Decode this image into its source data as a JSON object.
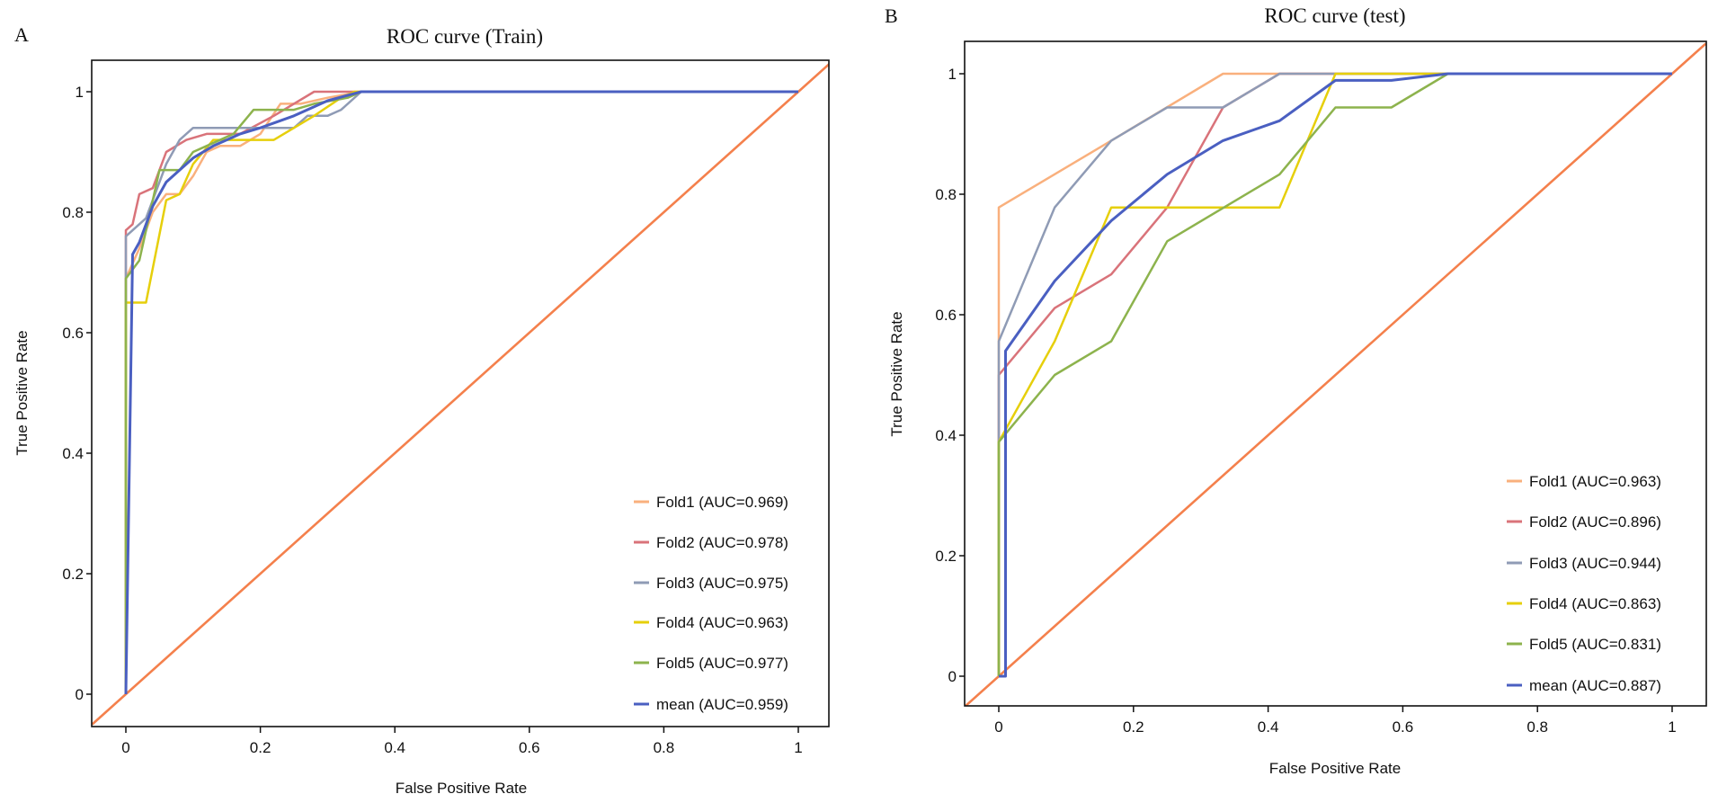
{
  "chart_data": [
    {
      "type": "line",
      "panel_label": "A",
      "title": "ROC curve (Train)",
      "xlabel": "False Positive Rate",
      "ylabel": "True Positive Rate",
      "xlim": [
        -0.05,
        1.05
      ],
      "ylim": [
        -0.05,
        1.05
      ],
      "xticks": [
        "0",
        "0.2",
        "0.4",
        "0.6",
        "0.8",
        "1"
      ],
      "yticks": [
        "0",
        "0.2",
        "0.4",
        "0.6",
        "0.8",
        "1"
      ],
      "grid": false,
      "legend_position": "bottom-right",
      "diagonal": {
        "from": [
          -0.05,
          -0.05
        ],
        "to": [
          1.05,
          1.05
        ],
        "color": "#f4804c"
      },
      "series": [
        {
          "name": "Fold1 (AUC=0.969)",
          "color": "#f9b07d",
          "points": [
            [
              0,
              0
            ],
            [
              0,
              0.69
            ],
            [
              0.02,
              0.74
            ],
            [
              0.04,
              0.8
            ],
            [
              0.06,
              0.83
            ],
            [
              0.08,
              0.83
            ],
            [
              0.1,
              0.86
            ],
            [
              0.12,
              0.9
            ],
            [
              0.14,
              0.91
            ],
            [
              0.17,
              0.91
            ],
            [
              0.2,
              0.93
            ],
            [
              0.23,
              0.98
            ],
            [
              0.26,
              0.98
            ],
            [
              0.3,
              0.99
            ],
            [
              0.35,
              1
            ],
            [
              1,
              1
            ]
          ]
        },
        {
          "name": "Fold2 (AUC=0.978)",
          "color": "#d9737a",
          "points": [
            [
              0,
              0
            ],
            [
              0,
              0.77
            ],
            [
              0.01,
              0.78
            ],
            [
              0.02,
              0.83
            ],
            [
              0.04,
              0.84
            ],
            [
              0.05,
              0.87
            ],
            [
              0.06,
              0.9
            ],
            [
              0.09,
              0.92
            ],
            [
              0.12,
              0.93
            ],
            [
              0.17,
              0.93
            ],
            [
              0.22,
              0.96
            ],
            [
              0.28,
              1.0
            ],
            [
              1,
              1
            ]
          ]
        },
        {
          "name": "Fold3 (AUC=0.975)",
          "color": "#8f9bb5",
          "points": [
            [
              0,
              0
            ],
            [
              0,
              0.76
            ],
            [
              0.03,
              0.79
            ],
            [
              0.06,
              0.88
            ],
            [
              0.08,
              0.92
            ],
            [
              0.1,
              0.94
            ],
            [
              0.25,
              0.94
            ],
            [
              0.27,
              0.96
            ],
            [
              0.3,
              0.96
            ],
            [
              0.32,
              0.97
            ],
            [
              0.35,
              1
            ],
            [
              1,
              1
            ]
          ]
        },
        {
          "name": "Fold4 (AUC=0.963)",
          "color": "#e6cf0b",
          "points": [
            [
              0,
              0
            ],
            [
              0,
              0.65
            ],
            [
              0.03,
              0.65
            ],
            [
              0.06,
              0.82
            ],
            [
              0.08,
              0.83
            ],
            [
              0.1,
              0.88
            ],
            [
              0.13,
              0.92
            ],
            [
              0.22,
              0.92
            ],
            [
              0.28,
              0.96
            ],
            [
              0.32,
              0.99
            ],
            [
              0.34,
              1
            ],
            [
              1,
              1
            ]
          ]
        },
        {
          "name": "Fold5 (AUC=0.977)",
          "color": "#8db34d",
          "points": [
            [
              0,
              0
            ],
            [
              0,
              0.69
            ],
            [
              0.02,
              0.72
            ],
            [
              0.05,
              0.87
            ],
            [
              0.08,
              0.87
            ],
            [
              0.1,
              0.9
            ],
            [
              0.12,
              0.91
            ],
            [
              0.16,
              0.93
            ],
            [
              0.19,
              0.97
            ],
            [
              0.25,
              0.97
            ],
            [
              0.28,
              0.98
            ],
            [
              0.33,
              0.99
            ],
            [
              0.35,
              1
            ],
            [
              1,
              1
            ]
          ]
        },
        {
          "name": "mean (AUC=0.959)",
          "color": "#4a5fc1",
          "points": [
            [
              0,
              0
            ],
            [
              0.01,
              0.73
            ],
            [
              0.02,
              0.75
            ],
            [
              0.04,
              0.81
            ],
            [
              0.06,
              0.85
            ],
            [
              0.08,
              0.87
            ],
            [
              0.1,
              0.89
            ],
            [
              0.13,
              0.91
            ],
            [
              0.17,
              0.93
            ],
            [
              0.2,
              0.94
            ],
            [
              0.25,
              0.96
            ],
            [
              0.3,
              0.985
            ],
            [
              0.35,
              1
            ],
            [
              1,
              1
            ]
          ]
        }
      ]
    },
    {
      "type": "line",
      "panel_label": "B",
      "title": "ROC curve (test)",
      "xlabel": "False Positive Rate",
      "ylabel": "True Positive Rate",
      "xlim": [
        -0.05,
        1.05
      ],
      "ylim": [
        -0.05,
        1.05
      ],
      "xticks": [
        "0",
        "0.2",
        "0.4",
        "0.6",
        "0.8",
        "1"
      ],
      "yticks": [
        "0",
        "0.2",
        "0.4",
        "0.6",
        "0.8",
        "1"
      ],
      "grid": false,
      "legend_position": "bottom-right",
      "diagonal": {
        "from": [
          -0.05,
          -0.05
        ],
        "to": [
          1.05,
          1.05
        ],
        "color": "#f4804c"
      },
      "series": [
        {
          "name": "Fold1 (AUC=0.963)",
          "color": "#f9b07d",
          "points": [
            [
              0,
              0
            ],
            [
              0,
              0.778
            ],
            [
              0.167,
              0.889
            ],
            [
              0.333,
              1
            ],
            [
              1,
              1
            ]
          ]
        },
        {
          "name": "Fold2 (AUC=0.896)",
          "color": "#d9737a",
          "points": [
            [
              0,
              0
            ],
            [
              0,
              0.5
            ],
            [
              0.083,
              0.611
            ],
            [
              0.167,
              0.667
            ],
            [
              0.25,
              0.778
            ],
            [
              0.333,
              0.944
            ],
            [
              0.417,
              1
            ],
            [
              1,
              1
            ]
          ]
        },
        {
          "name": "Fold3 (AUC=0.944)",
          "color": "#8f9bb5",
          "points": [
            [
              0,
              0
            ],
            [
              0,
              0.556
            ],
            [
              0.083,
              0.778
            ],
            [
              0.167,
              0.889
            ],
            [
              0.25,
              0.944
            ],
            [
              0.333,
              0.944
            ],
            [
              0.417,
              1
            ],
            [
              1,
              1
            ]
          ]
        },
        {
          "name": "Fold4 (AUC=0.863)",
          "color": "#e6cf0b",
          "points": [
            [
              0,
              0
            ],
            [
              0,
              0.389
            ],
            [
              0.083,
              0.556
            ],
            [
              0.167,
              0.778
            ],
            [
              0.417,
              0.778
            ],
            [
              0.5,
              1
            ],
            [
              1,
              1
            ]
          ]
        },
        {
          "name": "Fold5 (AUC=0.831)",
          "color": "#8db34d",
          "points": [
            [
              0,
              0
            ],
            [
              0,
              0.389
            ],
            [
              0.083,
              0.5
            ],
            [
              0.167,
              0.556
            ],
            [
              0.25,
              0.722
            ],
            [
              0.417,
              0.833
            ],
            [
              0.5,
              0.944
            ],
            [
              0.583,
              0.944
            ],
            [
              0.667,
              1
            ],
            [
              1,
              1
            ]
          ]
        },
        {
          "name": "mean (AUC=0.887)",
          "color": "#4a5fc1",
          "points": [
            [
              0,
              0
            ],
            [
              0.01,
              0
            ],
            [
              0.01,
              0.54
            ],
            [
              0.083,
              0.656
            ],
            [
              0.167,
              0.756
            ],
            [
              0.25,
              0.833
            ],
            [
              0.333,
              0.889
            ],
            [
              0.417,
              0.922
            ],
            [
              0.5,
              0.989
            ],
            [
              0.583,
              0.989
            ],
            [
              0.667,
              1
            ],
            [
              1,
              1
            ]
          ]
        }
      ]
    }
  ]
}
